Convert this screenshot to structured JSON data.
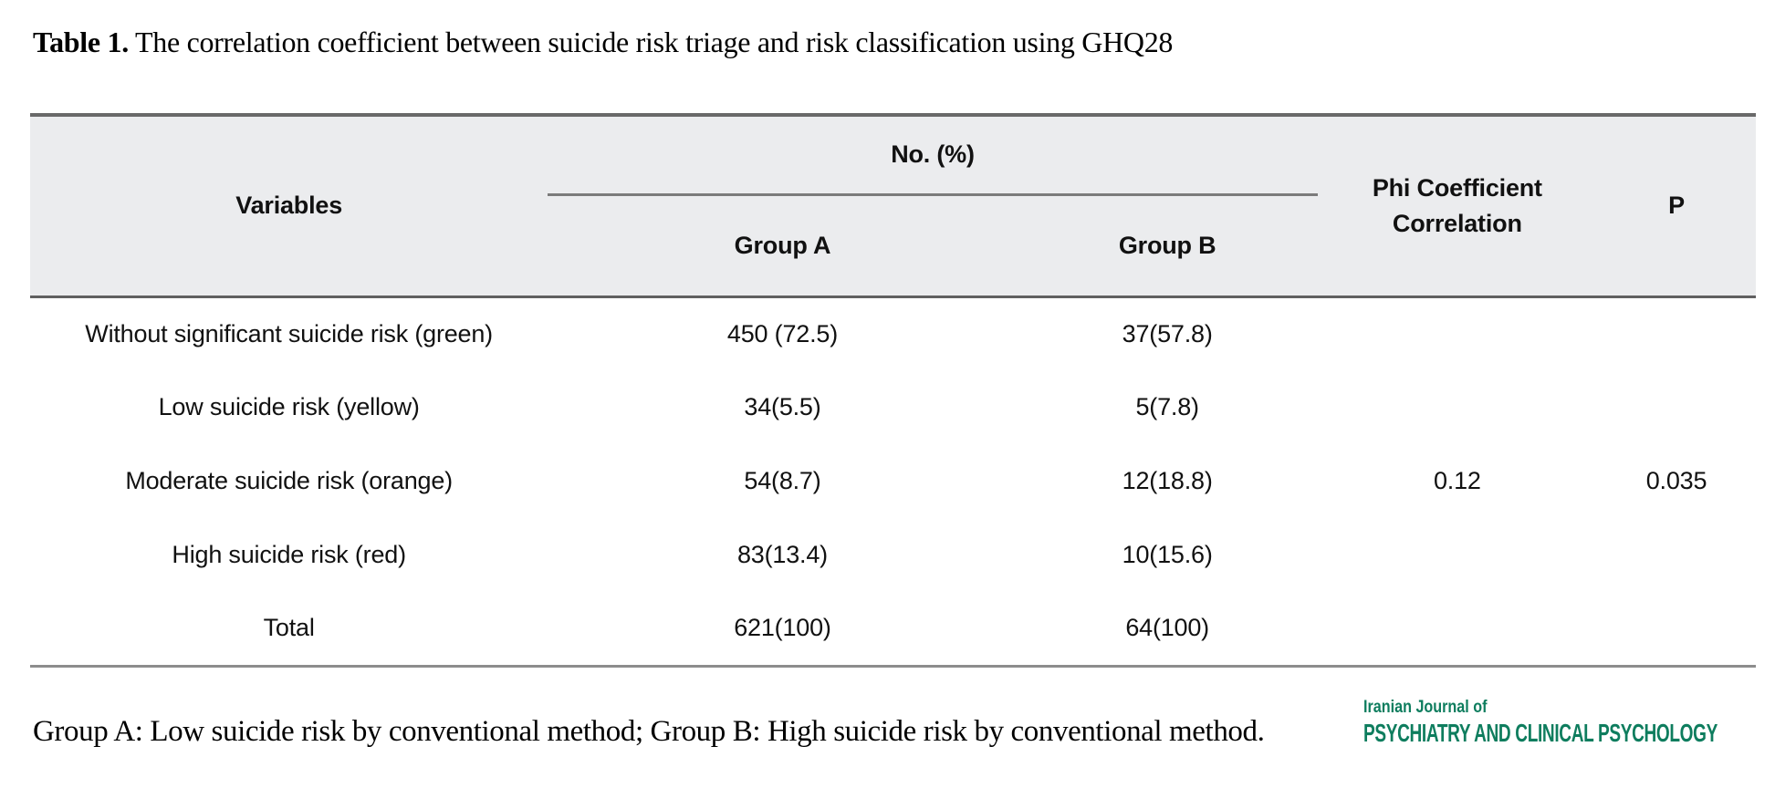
{
  "title": {
    "label": "Table 1.",
    "text": " The correlation coefficient between suicide risk triage and risk classification using GHQ28"
  },
  "table": {
    "headers": {
      "variables": "Variables",
      "no_pct": "No. (%)",
      "group_a": "Group A",
      "group_b": "Group B",
      "phi_line1": "Phi Coefficient",
      "phi_line2": "Correlation",
      "p": "P"
    },
    "rows": [
      {
        "variable": "Without significant suicide risk (green)",
        "group_a": "450 (72.5)",
        "group_b": "37(57.8)"
      },
      {
        "variable": "Low suicide risk (yellow)",
        "group_a": "34(5.5)",
        "group_b": "5(7.8)"
      },
      {
        "variable": "Moderate suicide risk (orange)",
        "group_a": "54(8.7)",
        "group_b": "12(18.8)"
      },
      {
        "variable": "High suicide risk (red)",
        "group_a": "83(13.4)",
        "group_b": "10(15.6)"
      },
      {
        "variable": "Total",
        "group_a": "621(100)",
        "group_b": "64(100)"
      }
    ],
    "phi_value": "0.12",
    "p_value": "0.035"
  },
  "footnote": "Group A: Low suicide risk by conventional method; Group B: High suicide risk by conventional method.",
  "journal": {
    "line1": "Iranian Journal of",
    "line2": "PSYCHIATRY AND CLINICAL PSYCHOLOGY",
    "color": "#0e7d5e"
  },
  "colors": {
    "header_background": "#ebecee",
    "border_dark": "#696969",
    "border_light": "#8d8d8d"
  }
}
